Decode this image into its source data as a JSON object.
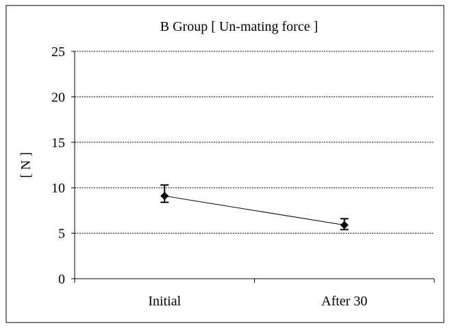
{
  "chart_data": {
    "type": "line",
    "title": "B Group [ Un-mating force ]",
    "xlabel": "",
    "ylabel": "[ N ]",
    "categories": [
      "Initial",
      "After 30"
    ],
    "series": [
      {
        "values": [
          9.1,
          5.9
        ],
        "error_low": [
          8.4,
          5.4
        ],
        "error_high": [
          10.3,
          6.6
        ],
        "marker": "diamond",
        "color": "#000000"
      }
    ],
    "ylim": [
      0,
      25
    ],
    "yticks": [
      "0",
      "5",
      "10",
      "15",
      "20",
      "25"
    ],
    "grid": true,
    "grid_style": "dashed horizontal",
    "legend": "none"
  }
}
